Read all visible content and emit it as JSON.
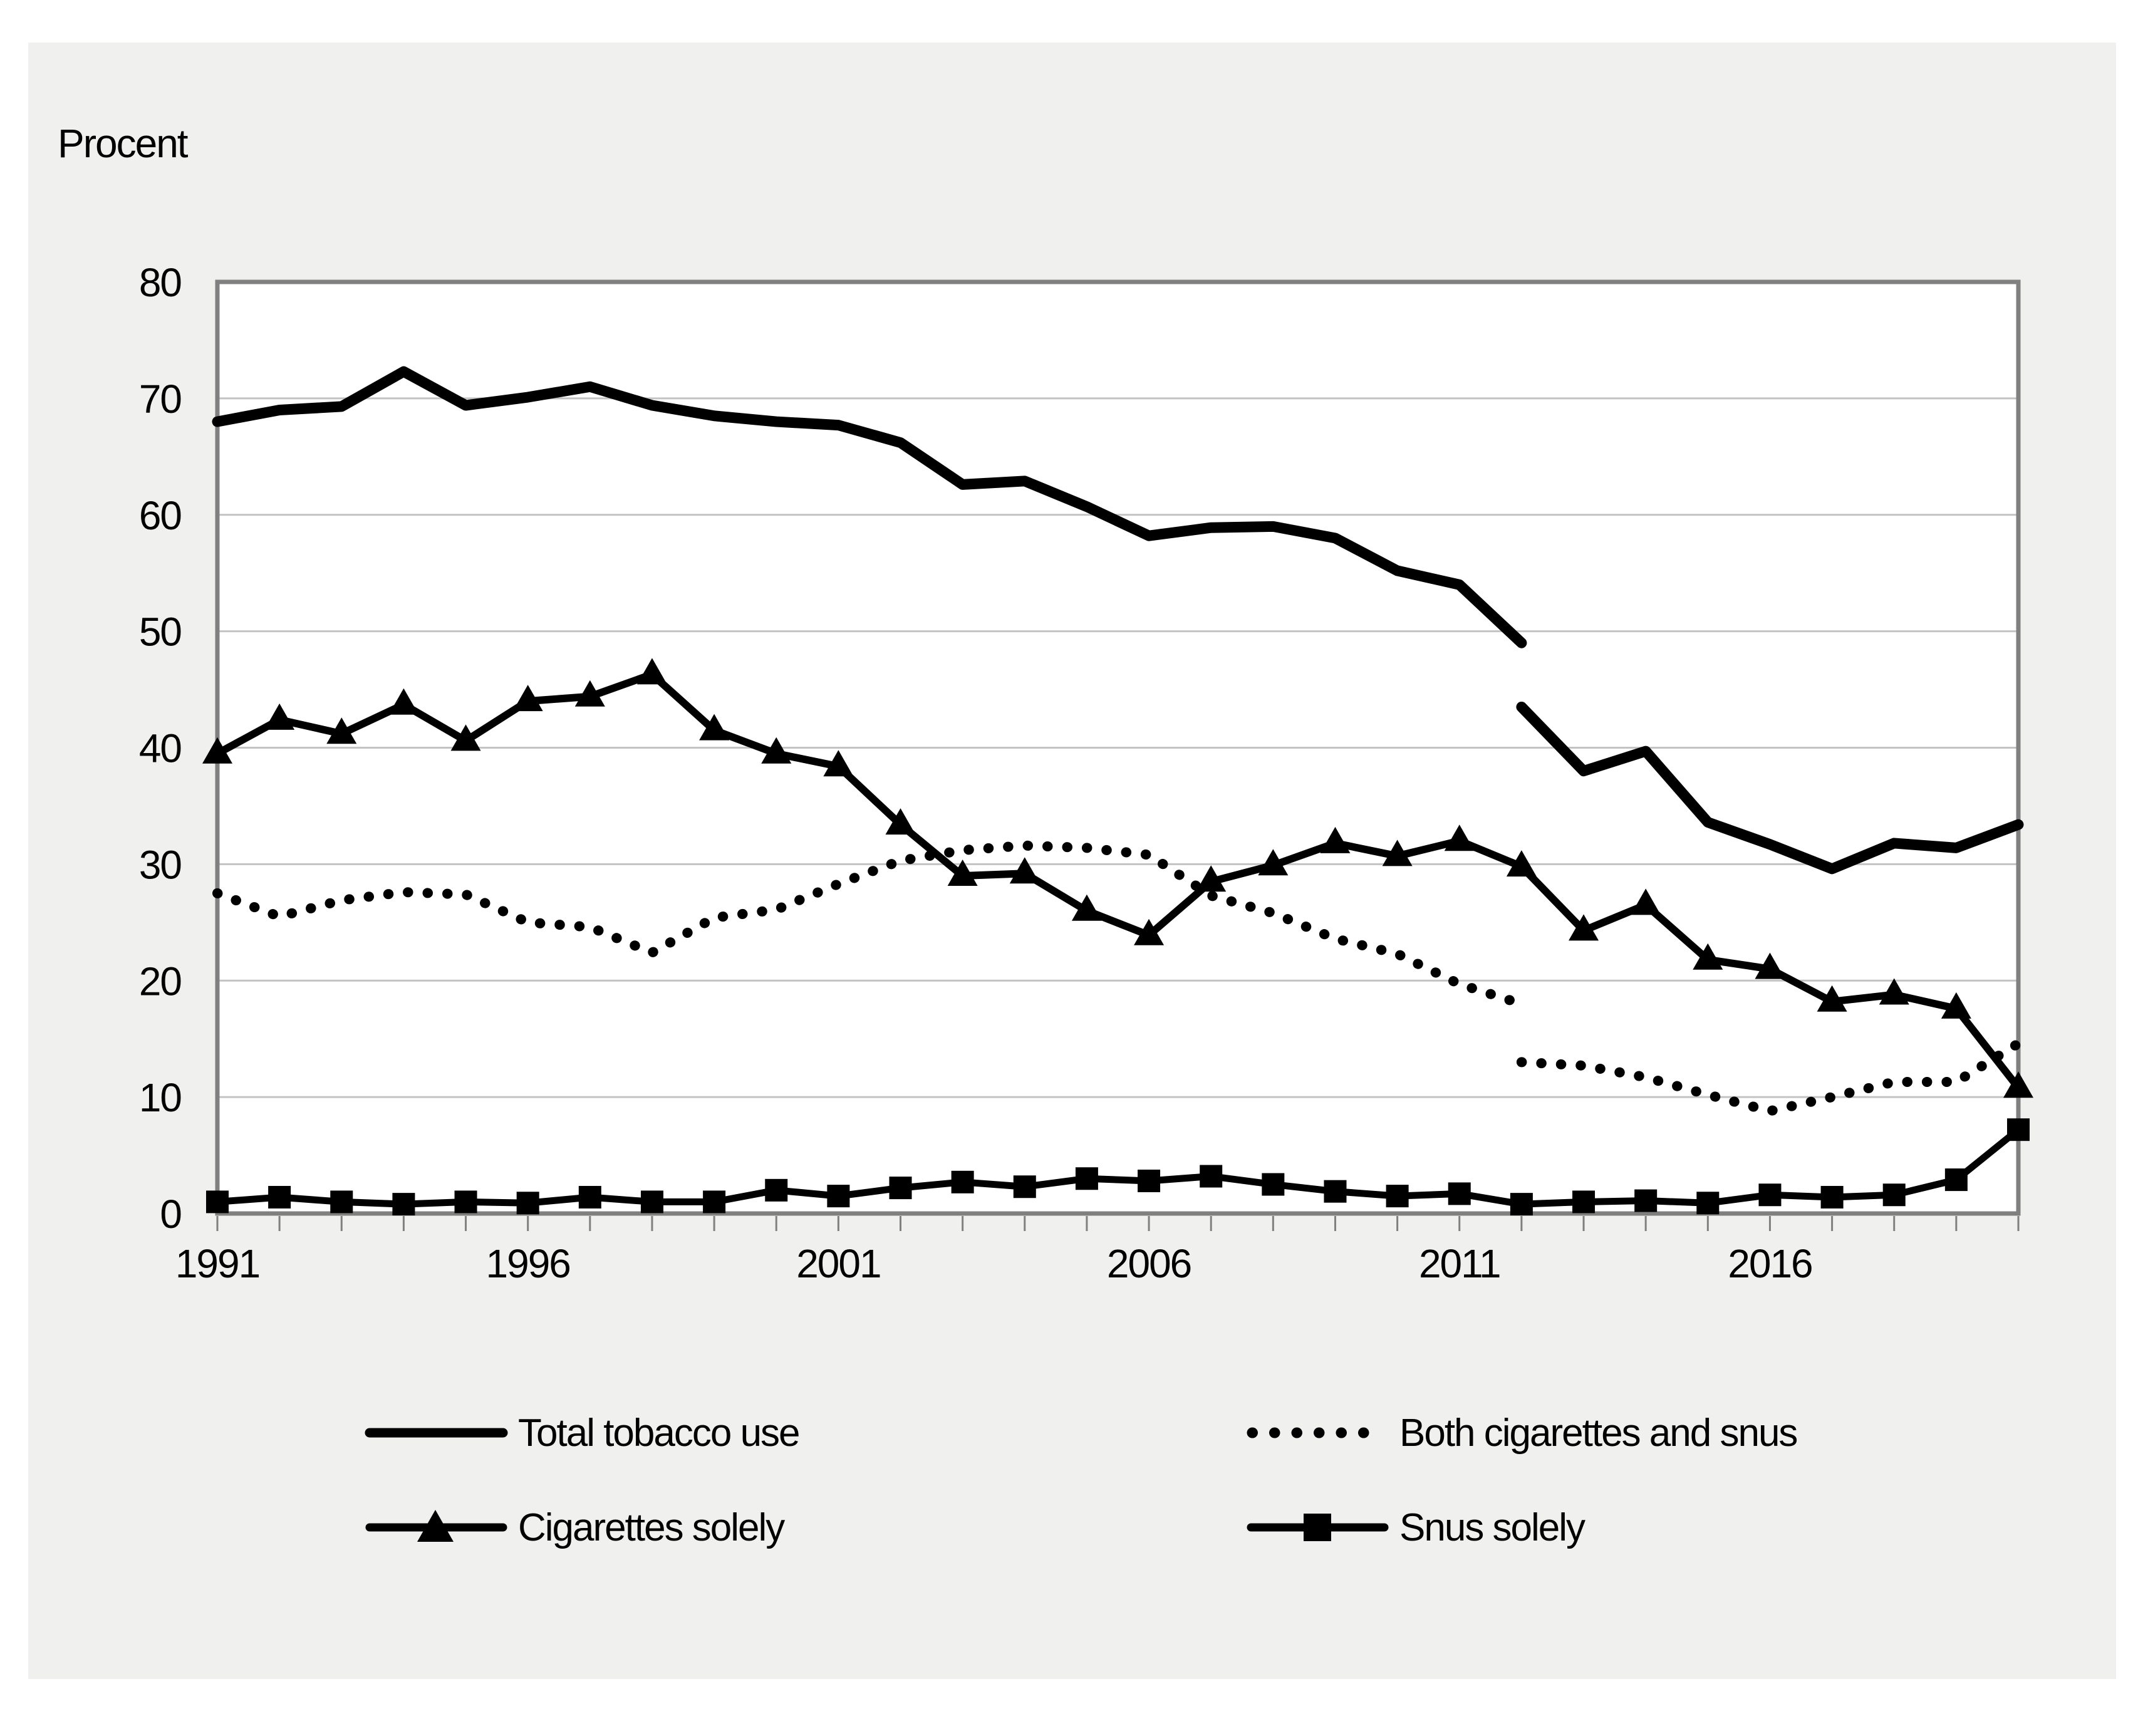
{
  "page": {
    "background": "#ffffff",
    "panel_background": "#f0f0ee"
  },
  "chart": {
    "y_axis_title": "Procent"
  },
  "chart_data": {
    "type": "line",
    "title": "",
    "xlabel": "",
    "ylabel": "Procent",
    "grid": "horizontal",
    "legend_position": "bottom",
    "axis": {
      "x_min": 1991,
      "x_max": 2020,
      "x_tick_every": 1,
      "x_labeled_ticks": [
        1991,
        1996,
        2001,
        2006,
        2011,
        2016
      ],
      "ylim": [
        0,
        80
      ],
      "y_step": 10,
      "y_ticks": [
        0,
        10,
        20,
        30,
        40,
        50,
        60,
        70,
        80
      ]
    },
    "colors": {
      "series": "#000000",
      "gridline": "#c3c3c3",
      "frame": "#808080",
      "plot_background": "#ffffff"
    },
    "note": "Total and Both series have a methodological break at 2012 (drawn as two segments with a gap)",
    "series": [
      {
        "name": "Total tobacco use",
        "line": "solid",
        "stroke_width": 17,
        "marker": "none",
        "segments": [
          {
            "years": [
              1991,
              1992,
              1993,
              1994,
              1995,
              1996,
              1997,
              1998,
              1999,
              2000,
              2001,
              2002,
              2003,
              2004,
              2005,
              2006,
              2007,
              2008,
              2009,
              2010,
              2011,
              2012
            ],
            "values": [
              68,
              69,
              69.3,
              72.3,
              69.4,
              70.1,
              71,
              69.4,
              68.5,
              68,
              67.7,
              66.2,
              62.6,
              62.9,
              60.7,
              58.2,
              58.9,
              59,
              58,
              55.2,
              54,
              49
            ]
          },
          {
            "years": [
              2012,
              2013,
              2014,
              2015,
              2016,
              2017,
              2018,
              2019,
              2020
            ],
            "values": [
              43.5,
              38,
              39.7,
              33.6,
              31.7,
              29.6,
              31.8,
              31.4,
              33.4
            ]
          }
        ]
      },
      {
        "name": "Both cigarettes and snus",
        "line": "dotted",
        "stroke_width": 16,
        "marker": "none",
        "segments": [
          {
            "years": [
              1991,
              1992,
              1993,
              1994,
              1995,
              1996,
              1997,
              1998,
              1999,
              2000,
              2001,
              2002,
              2003,
              2004,
              2005,
              2006,
              2007,
              2008,
              2009,
              2010,
              2011,
              2012
            ],
            "values": [
              27.5,
              25.5,
              26.9,
              27.6,
              27.4,
              25,
              24.6,
              22.4,
              25.4,
              26.1,
              28.3,
              30.3,
              31.2,
              31.6,
              31.4,
              30.8,
              27.3,
              25.8,
              23.6,
              22.3,
              19.7,
              18
            ]
          },
          {
            "years": [
              2012,
              2013,
              2014,
              2015,
              2016,
              2017,
              2018,
              2019,
              2020
            ],
            "values": [
              13,
              12.7,
              11.7,
              10.2,
              8.8,
              10,
              11.3,
              11.3,
              14.6
            ]
          }
        ]
      },
      {
        "name": "Cigarettes solely",
        "line": "solid",
        "stroke_width": 12,
        "marker": "triangle",
        "segments": [
          {
            "years": [
              1991,
              1992,
              1993,
              1994,
              1995,
              1996,
              1997,
              1998,
              1999,
              2000,
              2001,
              2002,
              2003,
              2004,
              2005,
              2006,
              2007,
              2008,
              2009,
              2010,
              2011,
              2012,
              2013,
              2014,
              2015,
              2016,
              2017,
              2018,
              2019,
              2020
            ],
            "values": [
              39.5,
              42.4,
              41.2,
              43.7,
              40.6,
              44,
              44.4,
              46.3,
              41.5,
              39.5,
              38.4,
              33.4,
              29,
              29.2,
              26,
              23.9,
              28.5,
              29.9,
              31.8,
              30.7,
              32,
              29.8,
              24.3,
              26.5,
              21.8,
              21,
              18.2,
              18.8,
              17.6,
              10.8
            ]
          }
        ]
      },
      {
        "name": "Snus solely",
        "line": "solid",
        "stroke_width": 11,
        "marker": "square",
        "segments": [
          {
            "years": [
              1991,
              1992,
              1993,
              1994,
              1995,
              1996,
              1997,
              1998,
              1999,
              2000,
              2001,
              2002,
              2003,
              2004,
              2005,
              2006,
              2007,
              2008,
              2009,
              2010,
              2011,
              2012,
              2013,
              2014,
              2015,
              2016,
              2017,
              2018,
              2019,
              2020
            ],
            "values": [
              1,
              1.4,
              1,
              0.8,
              1,
              0.9,
              1.4,
              1,
              1,
              2,
              1.5,
              2.2,
              2.7,
              2.3,
              3,
              2.8,
              3.2,
              2.5,
              1.9,
              1.5,
              1.7,
              0.8,
              1,
              1.1,
              0.9,
              1.6,
              1.4,
              1.6,
              2.9,
              7.2
            ]
          }
        ]
      }
    ]
  },
  "legend": {
    "items": [
      {
        "label": "Total tobacco use",
        "icon": "thick-line"
      },
      {
        "label": "Both cigarettes and snus",
        "icon": "dotted-line"
      },
      {
        "label": "Cigarettes solely",
        "icon": "line-with-triangle"
      },
      {
        "label": "Snus solely",
        "icon": "line-with-square"
      }
    ]
  }
}
